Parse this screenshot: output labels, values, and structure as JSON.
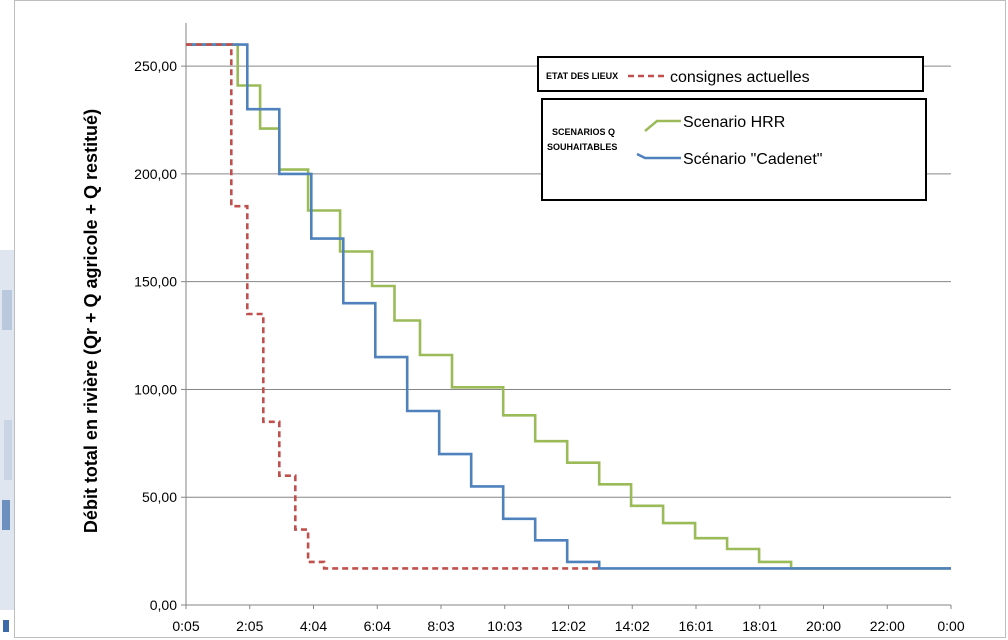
{
  "chart_data": {
    "type": "line",
    "step": true,
    "xlabel": "",
    "ylabel": "Débit total en rivière (Qr + Q agricole + Q restitué)",
    "x_tick_labels": [
      "0:05",
      "2:05",
      "4:04",
      "6:04",
      "8:03",
      "10:03",
      "12:02",
      "14:02",
      "16:01",
      "18:01",
      "20:00",
      "22:00",
      "0:00"
    ],
    "y_ticks": [
      0,
      50,
      100,
      150,
      200,
      250
    ],
    "y_tick_labels": [
      "0,00",
      "50,00",
      "100,00",
      "150,00",
      "200,00",
      "250,00"
    ],
    "ylim": [
      0,
      270
    ],
    "xlim_hours": [
      0.083,
      24
    ],
    "grid": "horizontal",
    "legend": {
      "group1_label": "ETAT DES LIEUX",
      "group2_label_line1": "SCENARIOS Q",
      "group2_label_line2": "SOUHAITABLES",
      "placement": "top-right"
    },
    "series": [
      {
        "name": "consignes actuelles",
        "color": "#c0504d",
        "style": "dashed",
        "x_hours": [
          0.083,
          1.5,
          1.5,
          2.0,
          2.0,
          2.5,
          2.5,
          3.0,
          3.0,
          3.5,
          3.5,
          3.9,
          3.9,
          4.4,
          4.4,
          13.0
        ],
        "y": [
          260,
          260,
          185,
          185,
          135,
          135,
          85,
          85,
          60,
          60,
          35,
          35,
          20,
          20,
          17,
          17
        ]
      },
      {
        "name": "Scenario HRR",
        "color": "#9bbb59",
        "style": "solid",
        "x_hours": [
          0.083,
          1.7,
          1.7,
          2.4,
          2.4,
          3.0,
          3.0,
          3.9,
          3.9,
          4.9,
          4.9,
          5.9,
          5.9,
          6.6,
          6.6,
          7.4,
          7.4,
          8.4,
          8.4,
          9.2,
          9.2,
          10.0,
          10.0,
          11.0,
          11.0,
          12.0,
          12.0,
          13.0,
          13.0,
          14.0,
          14.0,
          15.0,
          15.0,
          16.0,
          16.0,
          17.0,
          17.0,
          18.0,
          18.0,
          19.0,
          19.0,
          20.0,
          20.0,
          24.0
        ],
        "y": [
          260,
          260,
          241,
          241,
          221,
          221,
          202,
          202,
          183,
          183,
          164,
          164,
          148,
          148,
          132,
          132,
          116,
          116,
          101,
          101,
          101,
          101,
          88,
          88,
          76,
          76,
          66,
          66,
          56,
          56,
          46,
          46,
          38,
          38,
          31,
          31,
          26,
          26,
          20,
          20,
          17,
          17,
          17,
          17
        ]
      },
      {
        "name": "Scénario \"Cadenet\"",
        "color": "#4f81bd",
        "style": "solid",
        "x_hours": [
          0.083,
          2.0,
          2.0,
          3.0,
          3.0,
          4.0,
          4.0,
          5.0,
          5.0,
          6.0,
          6.0,
          7.0,
          7.0,
          8.0,
          8.0,
          9.0,
          9.0,
          10.0,
          10.0,
          11.0,
          11.0,
          12.0,
          12.0,
          13.0,
          13.0,
          24.0
        ],
        "y": [
          260,
          260,
          230,
          230,
          200,
          200,
          170,
          170,
          140,
          140,
          115,
          115,
          90,
          90,
          70,
          70,
          55,
          55,
          40,
          40,
          30,
          30,
          20,
          20,
          17,
          17
        ]
      }
    ]
  }
}
